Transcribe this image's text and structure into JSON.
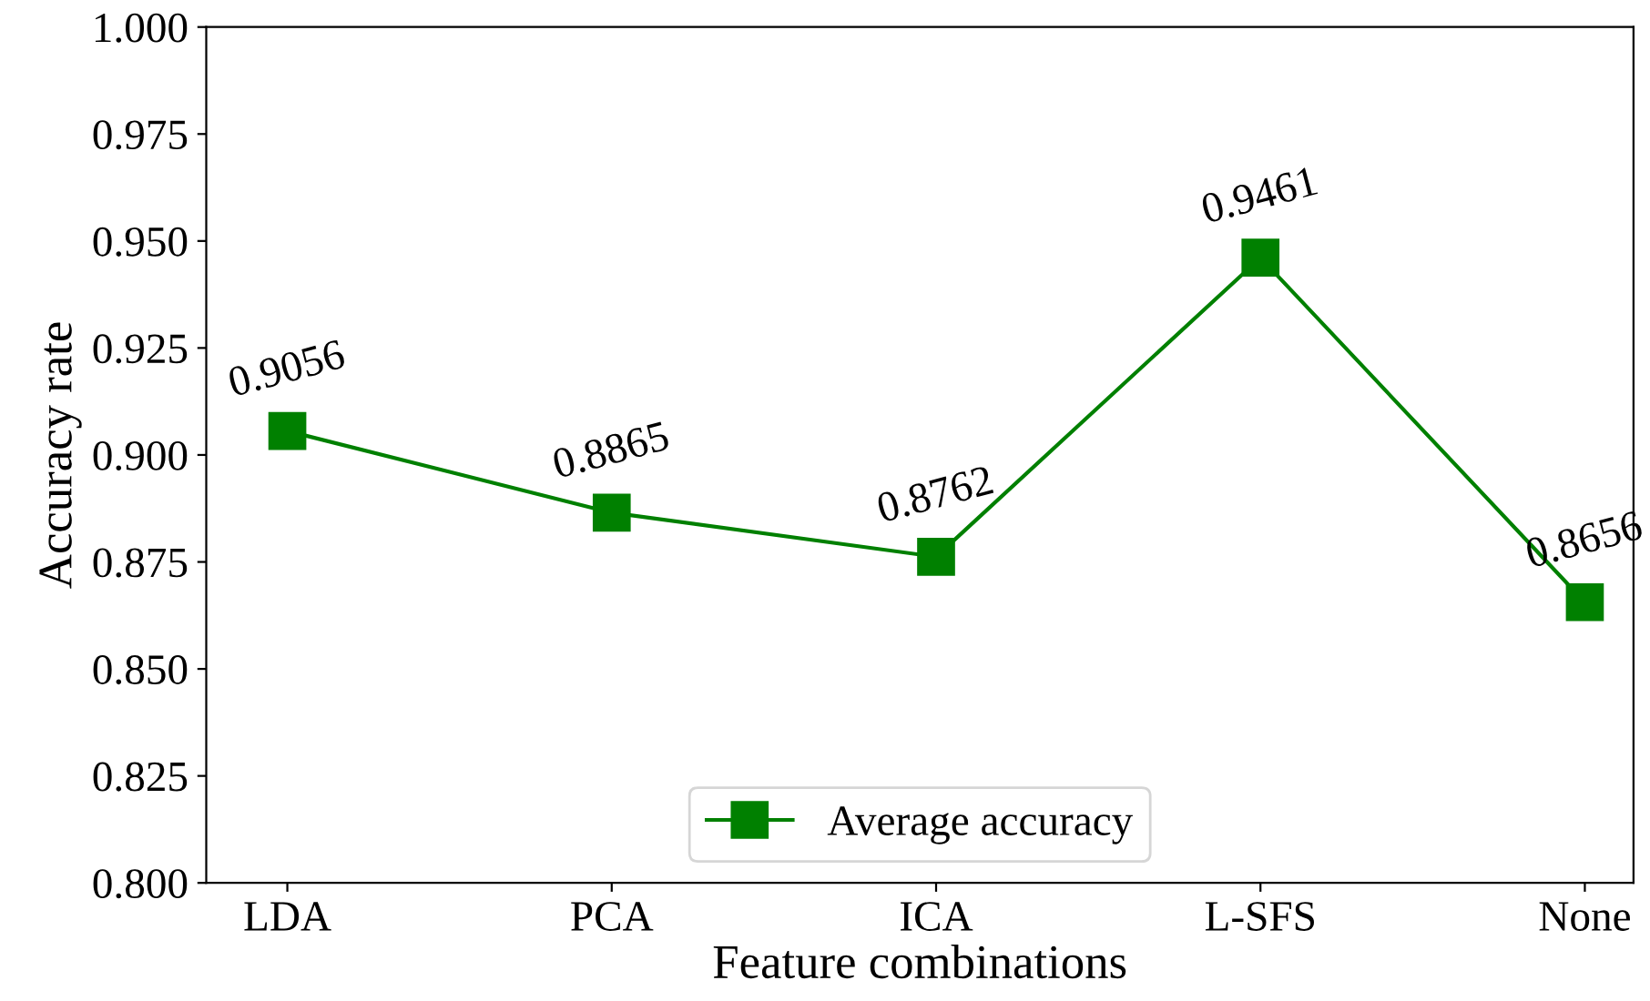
{
  "chart_data": {
    "type": "line",
    "xlabel": "Feature combinations",
    "ylabel": "Accuracy rate",
    "categories": [
      "LDA",
      "PCA",
      "ICA",
      "L-SFS",
      "None"
    ],
    "series": [
      {
        "name": "Average accuracy",
        "color": "#008000",
        "values": [
          0.9056,
          0.8865,
          0.8762,
          0.9461,
          0.8656
        ]
      }
    ],
    "ylim": [
      0.8,
      1.0
    ],
    "yticks": [
      "0.800",
      "0.825",
      "0.850",
      "0.875",
      "0.900",
      "0.925",
      "0.950",
      "0.975",
      "1.000"
    ],
    "data_labels": true,
    "legend": "bottom",
    "marker": "square",
    "line_style": "solid",
    "grid": false
  }
}
